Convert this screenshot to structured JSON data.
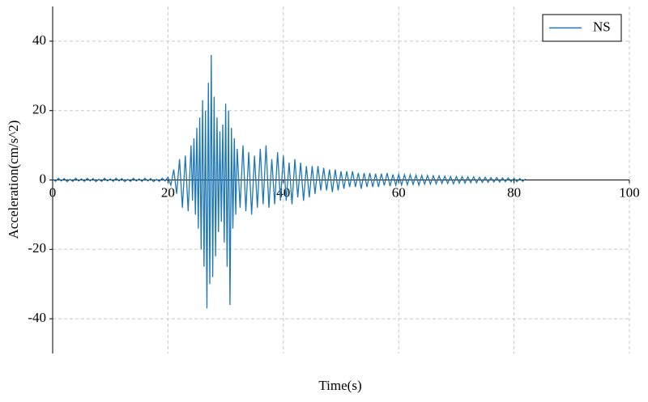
{
  "chart_data": {
    "type": "line",
    "x_label": "Time(s)",
    "y_label": "Acceleration(cm/s^2)",
    "x": [
      0,
      0.5,
      1,
      1.5,
      2,
      2.5,
      3,
      3.5,
      4,
      4.5,
      5,
      5.5,
      6,
      6.5,
      7,
      7.5,
      8,
      8.5,
      9,
      9.5,
      10,
      10.5,
      11,
      11.5,
      12,
      12.5,
      13,
      13.5,
      14,
      14.5,
      15,
      15.5,
      16,
      16.5,
      17,
      17.5,
      18,
      18.5,
      19,
      19.5,
      20,
      20.5,
      21,
      21.5,
      22,
      22.5,
      23,
      23.5,
      24,
      24.25,
      24.5,
      24.75,
      25,
      25.25,
      25.5,
      25.75,
      26,
      26.25,
      26.5,
      26.75,
      27,
      27.25,
      27.5,
      27.75,
      28,
      28.25,
      28.5,
      28.75,
      29,
      29.25,
      29.5,
      29.75,
      30,
      30.25,
      30.5,
      30.75,
      31,
      31.25,
      31.5,
      31.75,
      32,
      32.5,
      33,
      33.5,
      34,
      34.5,
      35,
      35.5,
      36,
      36.5,
      37,
      37.5,
      38,
      38.5,
      39,
      39.5,
      40,
      40.5,
      41,
      41.5,
      42,
      42.5,
      43,
      43.5,
      44,
      44.5,
      45,
      45.5,
      46,
      46.5,
      47,
      47.5,
      48,
      48.5,
      49,
      49.5,
      50,
      50.5,
      51,
      51.5,
      52,
      52.5,
      53,
      53.5,
      54,
      54.5,
      55,
      55.5,
      56,
      56.5,
      57,
      57.5,
      58,
      58.5,
      59,
      59.5,
      60,
      60.5,
      61,
      61.5,
      62,
      62.5,
      63,
      63.5,
      64,
      64.5,
      65,
      65.5,
      66,
      66.5,
      67,
      67.5,
      68,
      68.5,
      69,
      69.5,
      70,
      70.5,
      71,
      71.5,
      72,
      72.5,
      73,
      73.5,
      74,
      74.5,
      75,
      75.5,
      76,
      76.5,
      77,
      77.5,
      78,
      78.5,
      79,
      79.5,
      80,
      80.5,
      81,
      81.5,
      82
    ],
    "series": [
      {
        "name": "NS",
        "color": "#1f77b4",
        "values": [
          0.3,
          -0.4,
          0.5,
          -0.3,
          0.4,
          -0.5,
          0.2,
          -0.4,
          0.5,
          -0.3,
          0.3,
          -0.4,
          0.5,
          -0.3,
          0.4,
          -0.5,
          0.2,
          -0.4,
          0.5,
          -0.3,
          0.3,
          -0.4,
          0.5,
          -0.3,
          0.4,
          -0.5,
          0.2,
          -0.4,
          0.5,
          -0.3,
          0.3,
          -0.4,
          0.5,
          -0.3,
          0.4,
          -0.5,
          0.2,
          -0.4,
          0.5,
          -0.3,
          0.8,
          -1.5,
          3,
          -4,
          6,
          -8,
          7,
          -9,
          10,
          -6,
          12,
          -10,
          15,
          -14,
          18,
          -20,
          23,
          -25,
          20,
          -37,
          28,
          -30,
          36,
          -28,
          24,
          -22,
          18,
          -15,
          14,
          -12,
          16,
          -18,
          22,
          -25,
          20,
          -36,
          15,
          -14,
          12,
          -10,
          9,
          -8,
          10,
          -9,
          8,
          -10,
          7,
          -8,
          9,
          -7,
          10,
          -8,
          6,
          -7,
          8,
          -6,
          7,
          -6,
          5,
          -7,
          6,
          -5,
          5,
          -6,
          4,
          -5,
          4,
          -4,
          4,
          -3,
          3.5,
          -3,
          3,
          -3.5,
          3,
          -3,
          2.5,
          -2.5,
          2.5,
          -2,
          2.5,
          -2,
          2,
          -2.5,
          2,
          -2,
          2,
          -2,
          1.8,
          -2,
          1.8,
          -1.6,
          2,
          -1.8,
          1.6,
          -1.5,
          1.6,
          -1.5,
          1.5,
          -1.4,
          1.5,
          -1.3,
          1.4,
          -1.5,
          1.3,
          -1.2,
          1.3,
          -1.2,
          1.2,
          -1.1,
          1.2,
          -1,
          1.1,
          -1,
          1,
          -1.1,
          1,
          -0.9,
          1,
          -0.9,
          0.9,
          -0.8,
          0.9,
          -0.8,
          0.8,
          -0.7,
          0.8,
          -0.7,
          0.7,
          -0.6,
          0.7,
          -0.6,
          0.6,
          -0.5,
          0.6,
          -0.5,
          0.5,
          -0.5,
          0.4,
          -0.4,
          0.3
        ]
      }
    ],
    "xlim": [
      0,
      100
    ],
    "ylim": [
      -50,
      50
    ],
    "xticks": [
      0,
      20,
      40,
      60,
      80,
      100
    ],
    "yticks": [
      -40,
      -20,
      0,
      20,
      40
    ],
    "grid": true,
    "legend": "upper right"
  }
}
